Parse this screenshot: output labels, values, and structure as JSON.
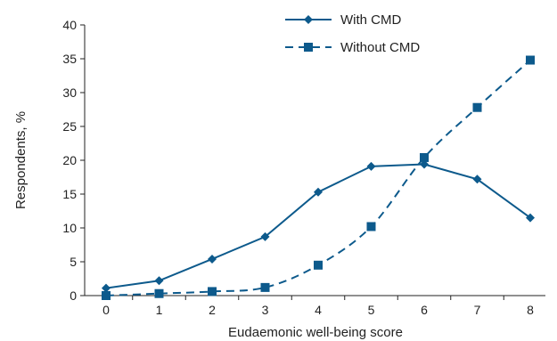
{
  "chart_data": {
    "type": "line",
    "xlabel": "Eudaemonic well-being score",
    "ylabel": "Respondents, %",
    "x": [
      0,
      1,
      2,
      3,
      4,
      5,
      6,
      7,
      8
    ],
    "x_tick_labels": [
      "0",
      "1",
      "2",
      "3",
      "4",
      "5",
      "6",
      "7",
      "8"
    ],
    "ylim": [
      0,
      40
    ],
    "y_ticks": [
      0,
      5,
      10,
      15,
      20,
      25,
      30,
      35,
      40
    ],
    "y_tick_labels": [
      "0",
      "5",
      "10",
      "15",
      "20",
      "25",
      "30",
      "35",
      "40"
    ],
    "grid": false,
    "legend_position": "top-right",
    "series": [
      {
        "name": "With CMD",
        "values": [
          1.1,
          2.2,
          5.4,
          8.7,
          15.3,
          19.1,
          19.4,
          17.2,
          11.5
        ],
        "line_style": "solid",
        "marker": "diamond",
        "color": "#0d5a8c"
      },
      {
        "name": "Without CMD",
        "values": [
          0.0,
          0.3,
          0.6,
          1.2,
          4.5,
          10.2,
          20.4,
          27.8,
          34.8
        ],
        "line_style": "dashed",
        "marker": "square",
        "color": "#0d5a8c"
      }
    ]
  }
}
